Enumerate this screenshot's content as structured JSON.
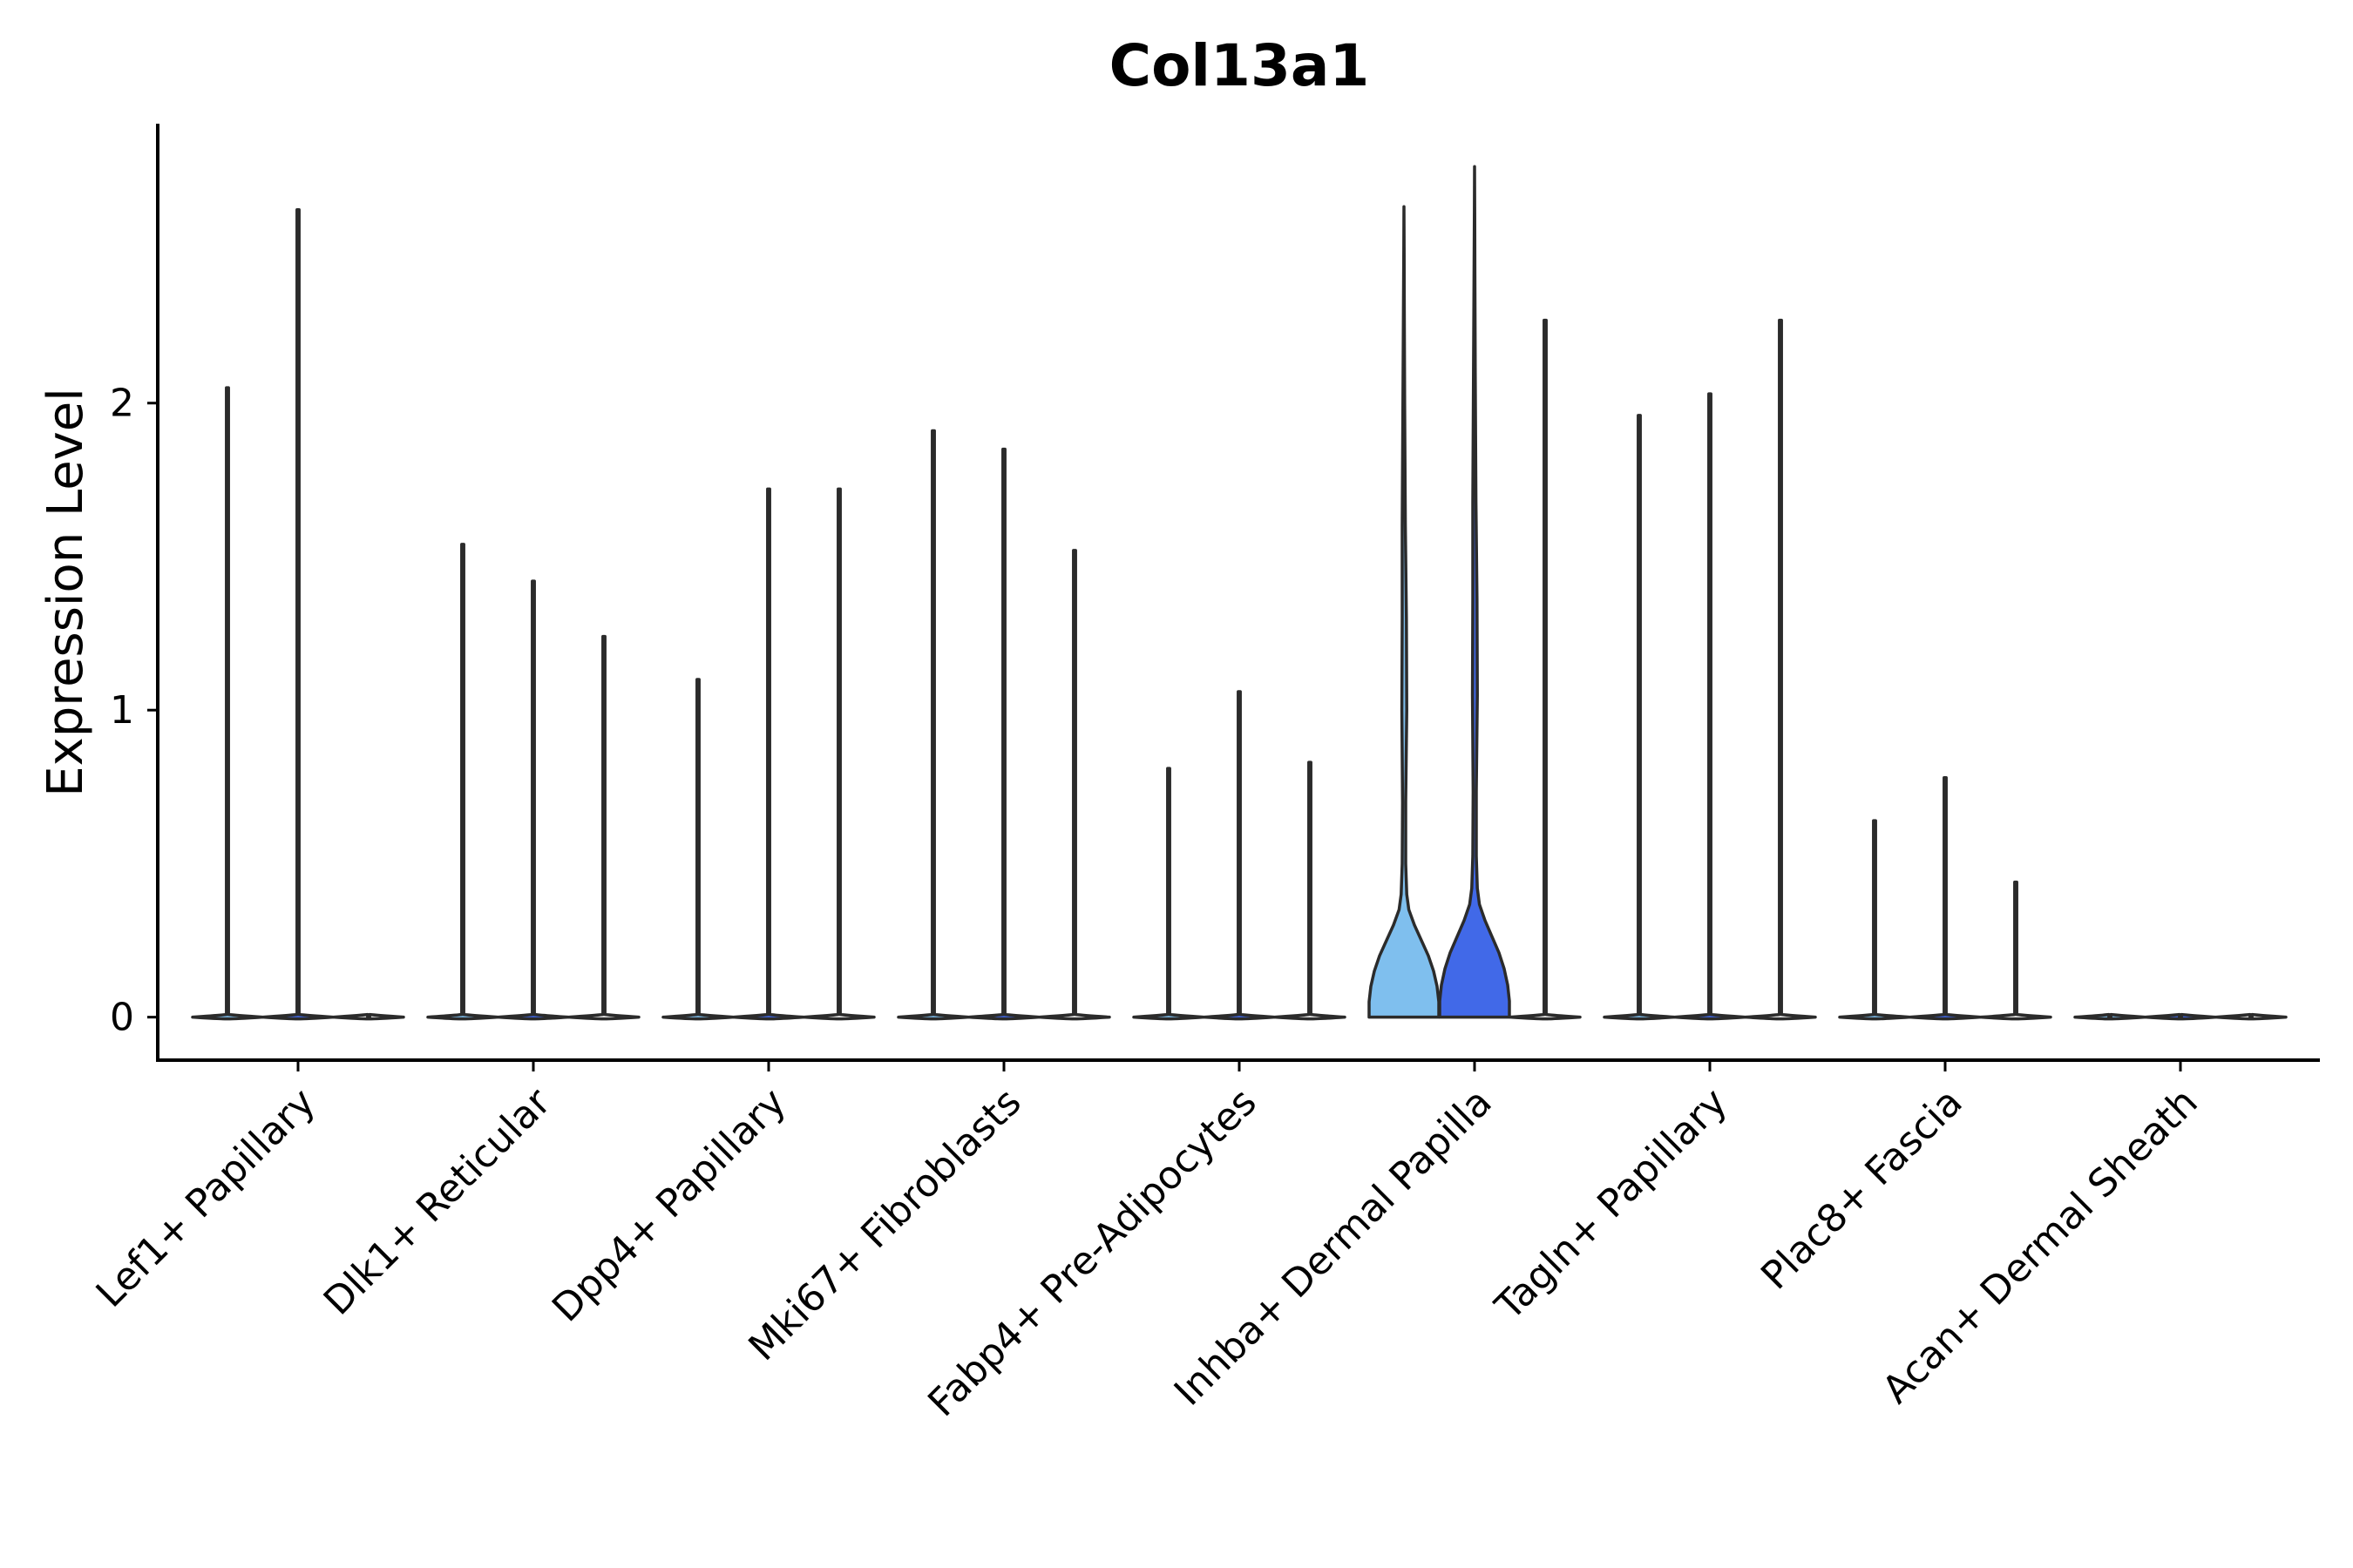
{
  "chart_data": {
    "type": "violin",
    "title": "Col13a1",
    "xlabel": "",
    "ylabel": "Expression Level",
    "ylim": [
      -0.14,
      2.91
    ],
    "yticks": [
      0,
      1,
      2
    ],
    "grid": false,
    "legend": "none",
    "categories": [
      "Lef1+ Papillary",
      "Dlk1+ Reticular",
      "Dpp4+ Papillary",
      "Mki67+ Fibroblasts",
      "Fabp4+ Pre-Adipocytes",
      "Inhba+ Dermal Papilla",
      "Tagln+ Papillary",
      "Plac8+ Fascia",
      "Acan+ Dermal Sheath"
    ],
    "series": [
      {
        "values": [
          2.05,
          1.54,
          1.1,
          1.91,
          0.81,
          2.64,
          1.96,
          0.64,
          0
        ]
      },
      {
        "values": [
          2.63,
          1.42,
          1.72,
          1.85,
          1.06,
          2.77,
          2.03,
          0.78,
          0
        ]
      },
      {
        "values": [
          0,
          1.24,
          1.72,
          1.52,
          0.83,
          2.27,
          2.27,
          0.44,
          0
        ]
      }
    ],
    "series_colors": [
      "#7fbfee",
      "#4169e8",
      "#ffffff"
    ],
    "highlighted_category": "Inhba+ Dermal Papilla",
    "highlighted_shape": {
      "y": [
        0,
        0.05,
        0.1,
        0.15,
        0.2,
        0.25,
        0.3,
        0.35,
        0.4,
        0.5,
        0.7,
        1.0,
        1.3,
        1.6,
        2.0,
        2.3,
        2.5,
        2.64
      ],
      "left": [
        1.0,
        1.0,
        0.95,
        0.85,
        0.7,
        0.5,
        0.3,
        0.14,
        0.08,
        0.05,
        0.04,
        0.06,
        0.05,
        0.05,
        0.03,
        0.015,
        0.005,
        0
      ],
      "right": [
        1.0,
        1.0,
        0.95,
        0.85,
        0.7,
        0.5,
        0.3,
        0.14,
        0.08,
        0.05,
        0.05,
        0.08,
        0.07,
        0.04,
        0.02,
        0.01,
        0.005,
        0
      ]
    }
  }
}
